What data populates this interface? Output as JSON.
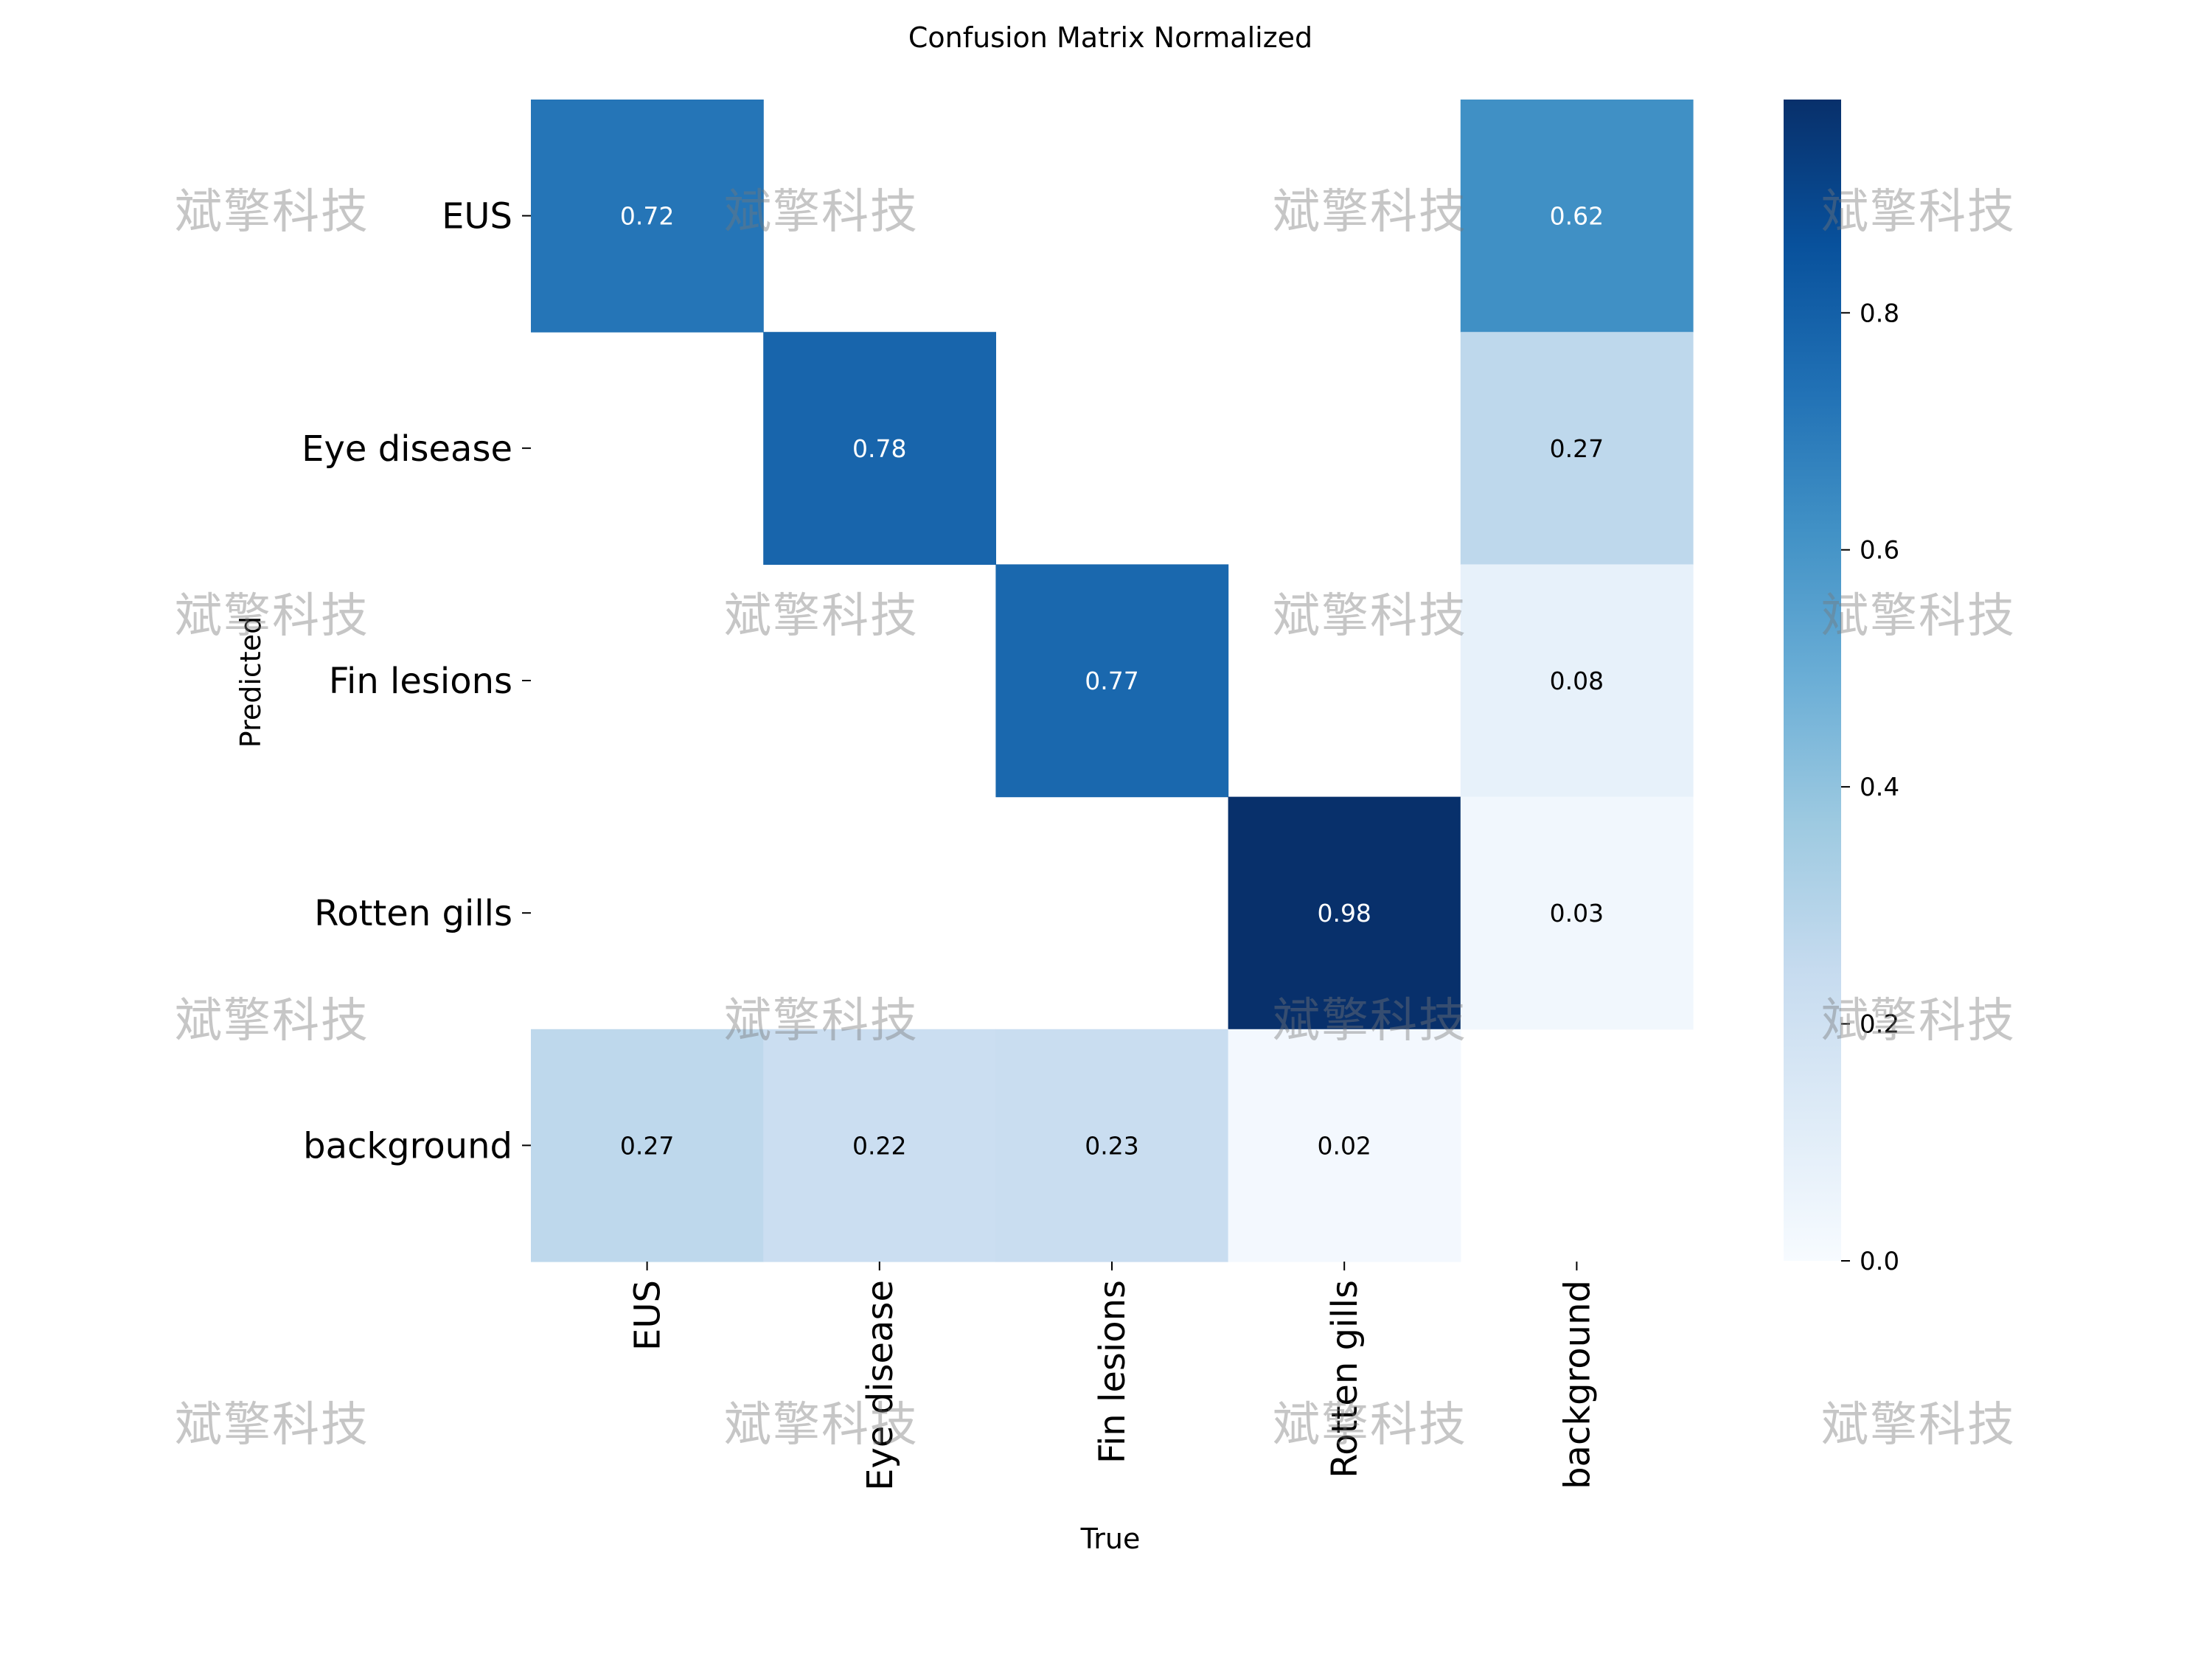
{
  "chart_data": {
    "type": "heatmap",
    "title": "Confusion Matrix Normalized",
    "xlabel": "True",
    "ylabel": "Predicted",
    "x_categories": [
      "EUS",
      "Eye disease",
      "Fin lesions",
      "Rotten gills",
      "background"
    ],
    "y_categories": [
      "EUS",
      "Eye disease",
      "Fin lesions",
      "Rotten gills",
      "background"
    ],
    "matrix": [
      [
        0.72,
        null,
        null,
        null,
        0.62
      ],
      [
        null,
        0.78,
        null,
        null,
        0.27
      ],
      [
        null,
        null,
        0.77,
        null,
        0.08
      ],
      [
        null,
        null,
        null,
        0.98,
        0.03
      ],
      [
        0.27,
        0.22,
        0.23,
        0.02,
        null
      ]
    ],
    "colorbar": {
      "range": [
        0,
        0.98
      ],
      "ticks": [
        0.0,
        0.2,
        0.4,
        0.6,
        0.8
      ],
      "tick_labels": [
        "0.0",
        "0.2",
        "0.4",
        "0.6",
        "0.8"
      ],
      "colormap": "Blues"
    },
    "grid": false
  },
  "watermark": {
    "text": "斌擎科技"
  }
}
